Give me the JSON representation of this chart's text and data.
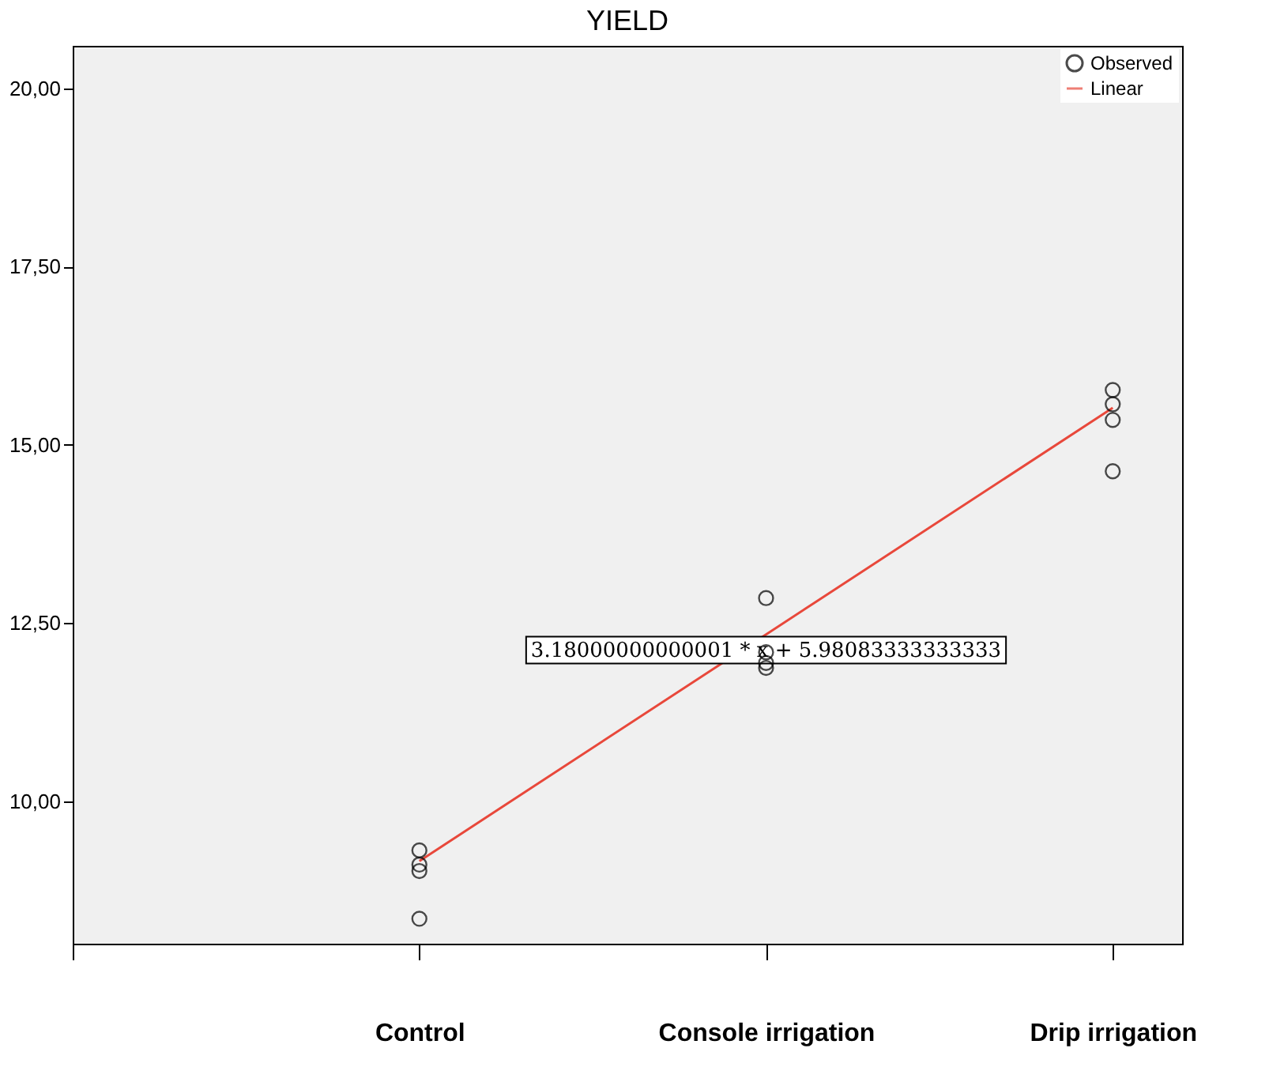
{
  "chart_data": {
    "type": "scatter",
    "title": "YIELD",
    "categories": [
      null,
      "Control",
      "Console irrigation",
      "Drip irrigation"
    ],
    "ylim": [
      8.0,
      20.6
    ],
    "yticks": [
      {
        "value": 10,
        "label": "10,00"
      },
      {
        "value": 12.5,
        "label": "12,50"
      },
      {
        "value": 15,
        "label": "15,00"
      },
      {
        "value": 17.5,
        "label": "17,50"
      },
      {
        "value": 20,
        "label": "20,00"
      }
    ],
    "series": [
      {
        "name": "Observed",
        "type": "scatter",
        "marker": "circle",
        "color": "#000000",
        "x": [
          "Control",
          "Control",
          "Control",
          "Control",
          "Console irrigation",
          "Console irrigation",
          "Console irrigation",
          "Console irrigation",
          "Drip irrigation",
          "Drip irrigation",
          "Drip irrigation",
          "Drip irrigation"
        ],
        "values": [
          9.31,
          9.11,
          9.02,
          8.35,
          12.85,
          12.09,
          11.94,
          11.87,
          15.77,
          15.57,
          15.35,
          14.63
        ]
      },
      {
        "name": "Linear",
        "type": "line",
        "color": "#e8483b",
        "values": [
          null,
          9.16,
          12.34,
          15.52
        ]
      }
    ],
    "annotations": [
      {
        "text": "3.18000000000001 * x + 5.98083333333333",
        "x": "Console irrigation",
        "y": 12.12
      }
    ],
    "line_style": "solid",
    "grid": false,
    "legend": "top right"
  }
}
